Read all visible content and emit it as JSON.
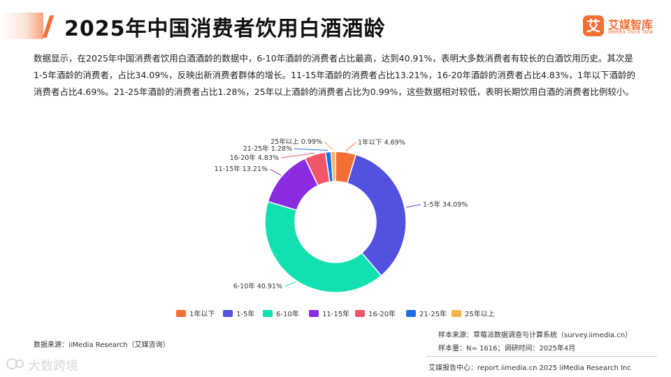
{
  "header": {
    "title": "2025年中国消费者饮用白酒酒龄"
  },
  "logo": {
    "badge": "艾",
    "name": "艾媒智库",
    "tagline": "iiMedia Think Tank"
  },
  "description": "数据显示，在2025年中国消费者饮用白酒酒龄的数据中，6-10年酒龄的消费者占比最高，达到40.91%，表明大多数消费者有较长的白酒饮用历史。其次是1-5年酒龄的消费者，占比34.09%，反映出新消费者群体的增长。11-15年酒龄的消费者占比13.21%，16-20年酒龄的消费者占比4.83%，1年以下酒龄的消费者占比4.69%。21-25年酒龄的消费者占比1.28%，25年以上酒龄的消费者占比为0.99%，这些数据相对较低，表明长期饮用白酒的消费者比例较小。",
  "chart_data": {
    "type": "pie",
    "donut": true,
    "categories": [
      "1年以下",
      "1-5年",
      "6-10年",
      "11-15年",
      "16-20年",
      "21-25年",
      "25年以上"
    ],
    "values": [
      4.69,
      34.09,
      40.91,
      13.21,
      4.83,
      1.28,
      0.99
    ],
    "data_labels": [
      "1年以下 4.69%",
      "1-5年 34.09%",
      "6-10年 40.91%",
      "11-15年 13.21%",
      "16-20年 4.83%",
      "21-25年 1.28%",
      "25年以上 0.99%"
    ],
    "colors": [
      "#f26f36",
      "#5352e0",
      "#13e0b0",
      "#8a2be2",
      "#f0566a",
      "#1a6ee8",
      "#f7b04c"
    ],
    "legend_position": "bottom"
  },
  "footer": {
    "source_left": "数据来源：iiMedia Research（艾媒咨询）",
    "sample_source": "样本来源：草莓派数据调查与计算系统（survey.iimedia.cn）",
    "sample_size": "样本量：N= 1616；调研时间：2025年4月",
    "report_center": "艾媒报告中心：report.iimedia.cn   2025 iiMedia Research Inc"
  },
  "watermark": {
    "text": "大数跨境"
  }
}
